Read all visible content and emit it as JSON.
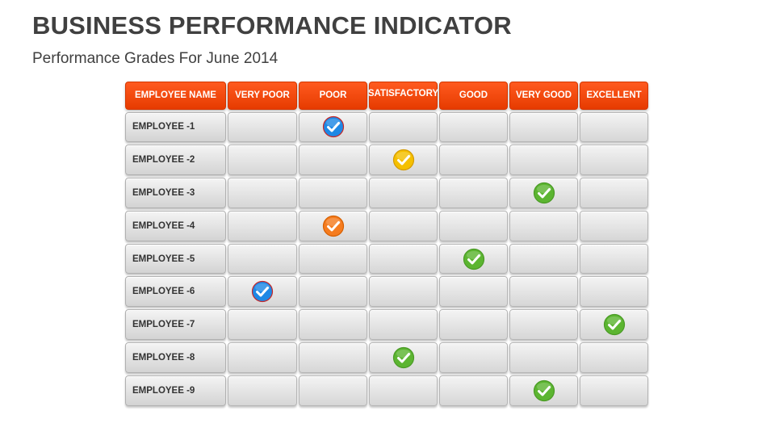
{
  "header": {
    "title": "BUSINESS PERFORMANCE INDICATOR",
    "subtitle": "Performance Grades For June 2014"
  },
  "table": {
    "columns": [
      "EMPLOYEE NAME",
      "VERY POOR",
      "POOR",
      "SATISFACTORY",
      "GOOD",
      "VERY GOOD",
      "EXCELLENT"
    ],
    "rows": [
      {
        "name": "EMPLOYEE -1",
        "grade_index": 2,
        "check_color": "#1e88e5",
        "check_ring": "#c62828",
        "icon": "check-circle-icon"
      },
      {
        "name": "EMPLOYEE -2",
        "grade_index": 3,
        "check_color": "#f5c000",
        "check_ring": "#d49a00",
        "icon": "check-circle-icon"
      },
      {
        "name": "EMPLOYEE -3",
        "grade_index": 5,
        "check_color": "#5cb531",
        "check_ring": "#4a9a25",
        "icon": "check-circle-icon"
      },
      {
        "name": "EMPLOYEE -4",
        "grade_index": 2,
        "check_color": "#f57c1f",
        "check_ring": "#d65f00",
        "icon": "check-circle-icon"
      },
      {
        "name": "EMPLOYEE -5",
        "grade_index": 4,
        "check_color": "#5cb531",
        "check_ring": "#4a9a25",
        "icon": "check-circle-icon"
      },
      {
        "name": "EMPLOYEE -6",
        "grade_index": 1,
        "check_color": "#1e88e5",
        "check_ring": "#c62828",
        "icon": "check-circle-icon"
      },
      {
        "name": "EMPLOYEE -7",
        "grade_index": 6,
        "check_color": "#5cb531",
        "check_ring": "#4a9a25",
        "icon": "check-circle-icon"
      },
      {
        "name": "EMPLOYEE -8",
        "grade_index": 3,
        "check_color": "#5cb531",
        "check_ring": "#4a9a25",
        "icon": "check-circle-icon"
      },
      {
        "name": "EMPLOYEE -9",
        "grade_index": 5,
        "check_color": "#5cb531",
        "check_ring": "#4a9a25",
        "icon": "check-circle-icon"
      }
    ]
  }
}
